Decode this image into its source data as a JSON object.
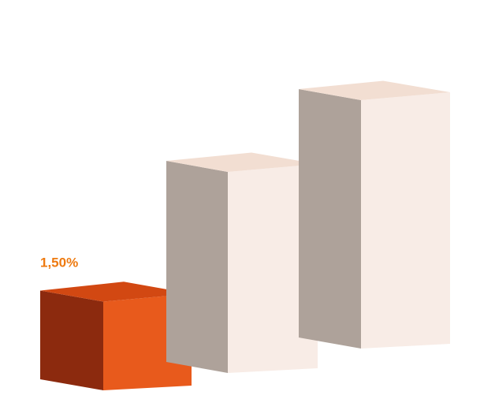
{
  "chart_data": {
    "type": "bar",
    "title": "",
    "xlabel": "",
    "ylabel": "",
    "categories": [
      "",
      "",
      ""
    ],
    "values": [
      1.5,
      3.4,
      4.2
    ],
    "data_labels": [
      "1,50%",
      "",
      ""
    ],
    "ylim": [
      0,
      5
    ],
    "grid": false,
    "style": "3d-blocks",
    "colors": {
      "highlight_front": "#E85A1C",
      "highlight_top": "#D24812",
      "highlight_side": "#8C2A0E",
      "muted_front": "#F8ECE6",
      "muted_top": "#F2DED2",
      "muted_side": "#AEA29A",
      "label": "#EE7A10"
    }
  }
}
